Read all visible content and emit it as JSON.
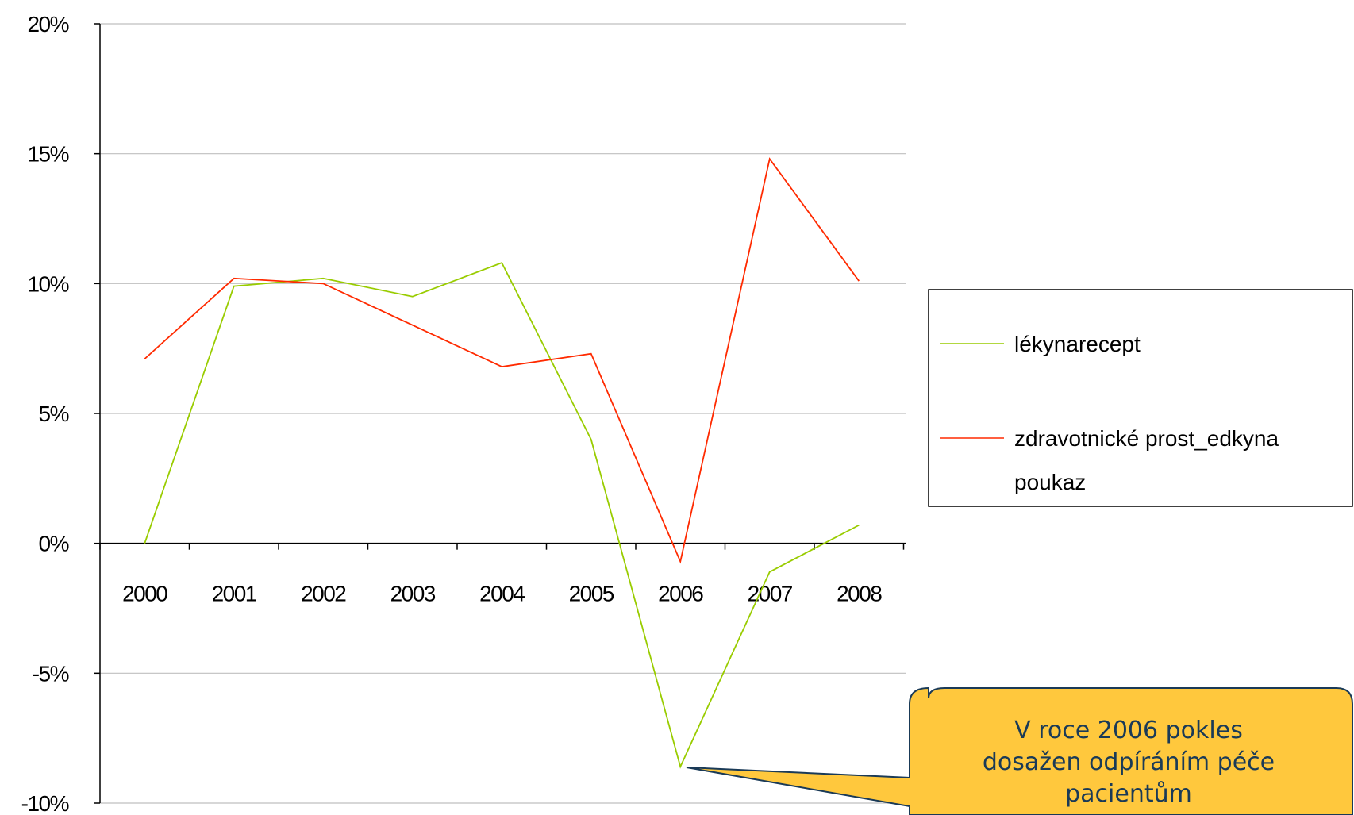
{
  "chart_data": {
    "type": "line",
    "title": "",
    "xlabel": "",
    "ylabel": "",
    "categories": [
      "2000",
      "2001",
      "2002",
      "2003",
      "2004",
      "2005",
      "2006",
      "2007",
      "2008"
    ],
    "ylim": [
      -10,
      20
    ],
    "yticks": [
      -10,
      -5,
      0,
      5,
      10,
      15,
      20
    ],
    "ytick_labels": [
      "-10%",
      "-5%",
      "0%",
      "5%",
      "10%",
      "15%",
      "20%"
    ],
    "grid": true,
    "legend_position": "right",
    "series": [
      {
        "name": "lékynarecept",
        "color": "#99cc00",
        "values": [
          0.0,
          9.9,
          10.2,
          9.5,
          10.8,
          4.0,
          -8.6,
          -1.1,
          0.7
        ]
      },
      {
        "name": "zdravotnické prost_edkyna poukaz",
        "color": "#ff2a00",
        "values": [
          7.1,
          10.2,
          10.0,
          8.4,
          6.8,
          7.3,
          -0.7,
          14.8,
          10.1
        ]
      }
    ],
    "legend_labels": {
      "series0": "lékynarecept",
      "series1_line1": "zdravotnické prost_edkyna",
      "series1_line2": "poukaz"
    },
    "annotation": {
      "line1": "V roce 2006 pokles",
      "line2": "dosažen odpíráním péče",
      "line3": "pacientům",
      "points_to": {
        "category": "2006",
        "value": -8.6
      },
      "fill_color": "#ffc83d",
      "text_color": "#1a3a57"
    }
  }
}
